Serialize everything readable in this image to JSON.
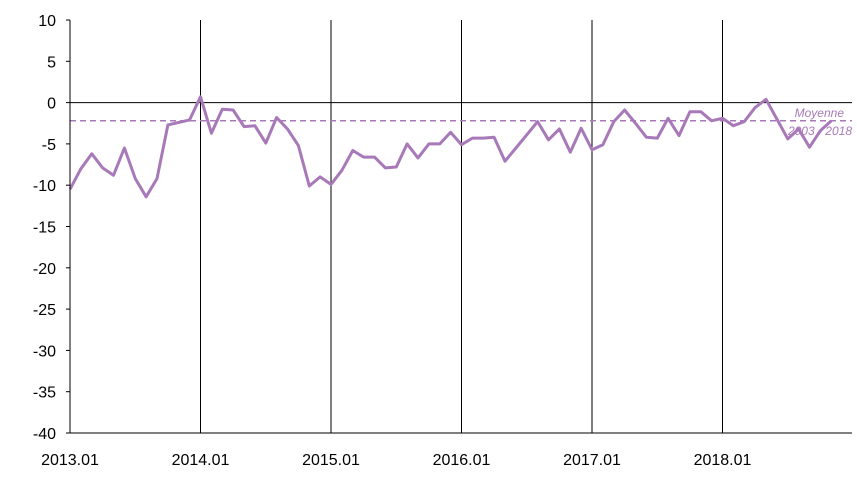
{
  "chart_data": {
    "type": "line",
    "title": "",
    "xlabel": "",
    "ylabel": "",
    "ylim": [
      -40,
      10
    ],
    "yticks": [
      10,
      5,
      0,
      -5,
      -10,
      -15,
      -20,
      -25,
      -30,
      -35,
      -40
    ],
    "xticks": [
      "2013.01",
      "2014.01",
      "2015.01",
      "2016.01",
      "2017.01",
      "2018.01"
    ],
    "x_start": "2013.01",
    "x_end": "2018.12",
    "grid": "vertical lines at each year start",
    "legend": "none",
    "series": [
      {
        "color": "#A879B8",
        "values": [
          -10.5,
          -8,
          -6.2,
          -7.9,
          -8.8,
          -5.5,
          -9.2,
          -11.4,
          -9.2,
          -2.7,
          -2.4,
          -2.1,
          0.7,
          -3.7,
          -0.8,
          -0.9,
          -2.9,
          -2.8,
          -4.9,
          -1.8,
          -3.2,
          -5.2,
          -10.1,
          -9,
          -9.9,
          -8.2,
          -5.8,
          -6.6,
          -6.6,
          -7.9,
          -7.8,
          -5,
          -6.7,
          -5,
          -5,
          -3.6,
          -5.1,
          -4.3,
          -4.3,
          -4.2,
          -7.1,
          -5.5,
          -3.9,
          -2.3,
          -4.5,
          -3.2,
          -6,
          -3.1,
          -5.7,
          -5.1,
          -2.3,
          -0.9,
          -2.5,
          -4.2,
          -4.3,
          -1.9,
          -4,
          -1.1,
          -1.1,
          -2.2,
          -1.9,
          -2.8,
          -2.3,
          -0.6,
          0.4,
          -2,
          -4.4,
          -3.2,
          -5.4,
          -3.4,
          -2.2
        ]
      }
    ],
    "reference_line": {
      "value": -2.2,
      "color": "#A879B8",
      "label_line1": "Moyenne",
      "label_line2": "2003 - 2018"
    },
    "zero_line_value": 0
  }
}
